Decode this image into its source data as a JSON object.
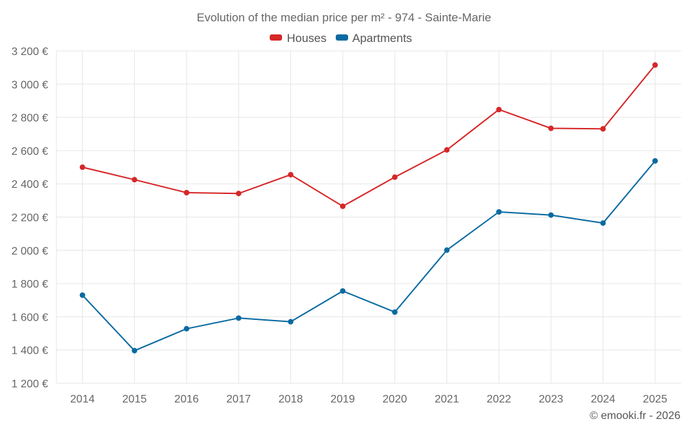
{
  "chart_data": {
    "type": "line",
    "title": "Evolution of the median price per m² - 974 - Sainte-Marie",
    "categories": [
      "2014",
      "2015",
      "2016",
      "2017",
      "2018",
      "2019",
      "2020",
      "2021",
      "2022",
      "2023",
      "2024",
      "2025"
    ],
    "series": [
      {
        "name": "Houses",
        "color": "#d62728",
        "values": [
          2500,
          2425,
          2347,
          2342,
          2455,
          2265,
          2440,
          2604,
          2847,
          2734,
          2731,
          3115
        ]
      },
      {
        "name": "Apartments",
        "color": "#0a6aa1",
        "values": [
          1730,
          1396,
          1528,
          1592,
          1570,
          1755,
          1628,
          2001,
          2231,
          2212,
          2164,
          2538
        ]
      }
    ],
    "ylim": [
      1200,
      3200
    ],
    "yticks": [
      1200,
      1400,
      1600,
      1800,
      2000,
      2200,
      2400,
      2600,
      2800,
      3000,
      3200
    ],
    "ytick_labels": [
      "1 200 €",
      "1 400 €",
      "1 600 €",
      "1 800 €",
      "2 000 €",
      "2 200 €",
      "2 400 €",
      "2 600 €",
      "2 800 €",
      "3 000 €",
      "3 200 €"
    ],
    "xlabel": "",
    "ylabel": "",
    "grid": true,
    "legend": "top-center"
  },
  "credit": "© emooki.fr - 2026"
}
